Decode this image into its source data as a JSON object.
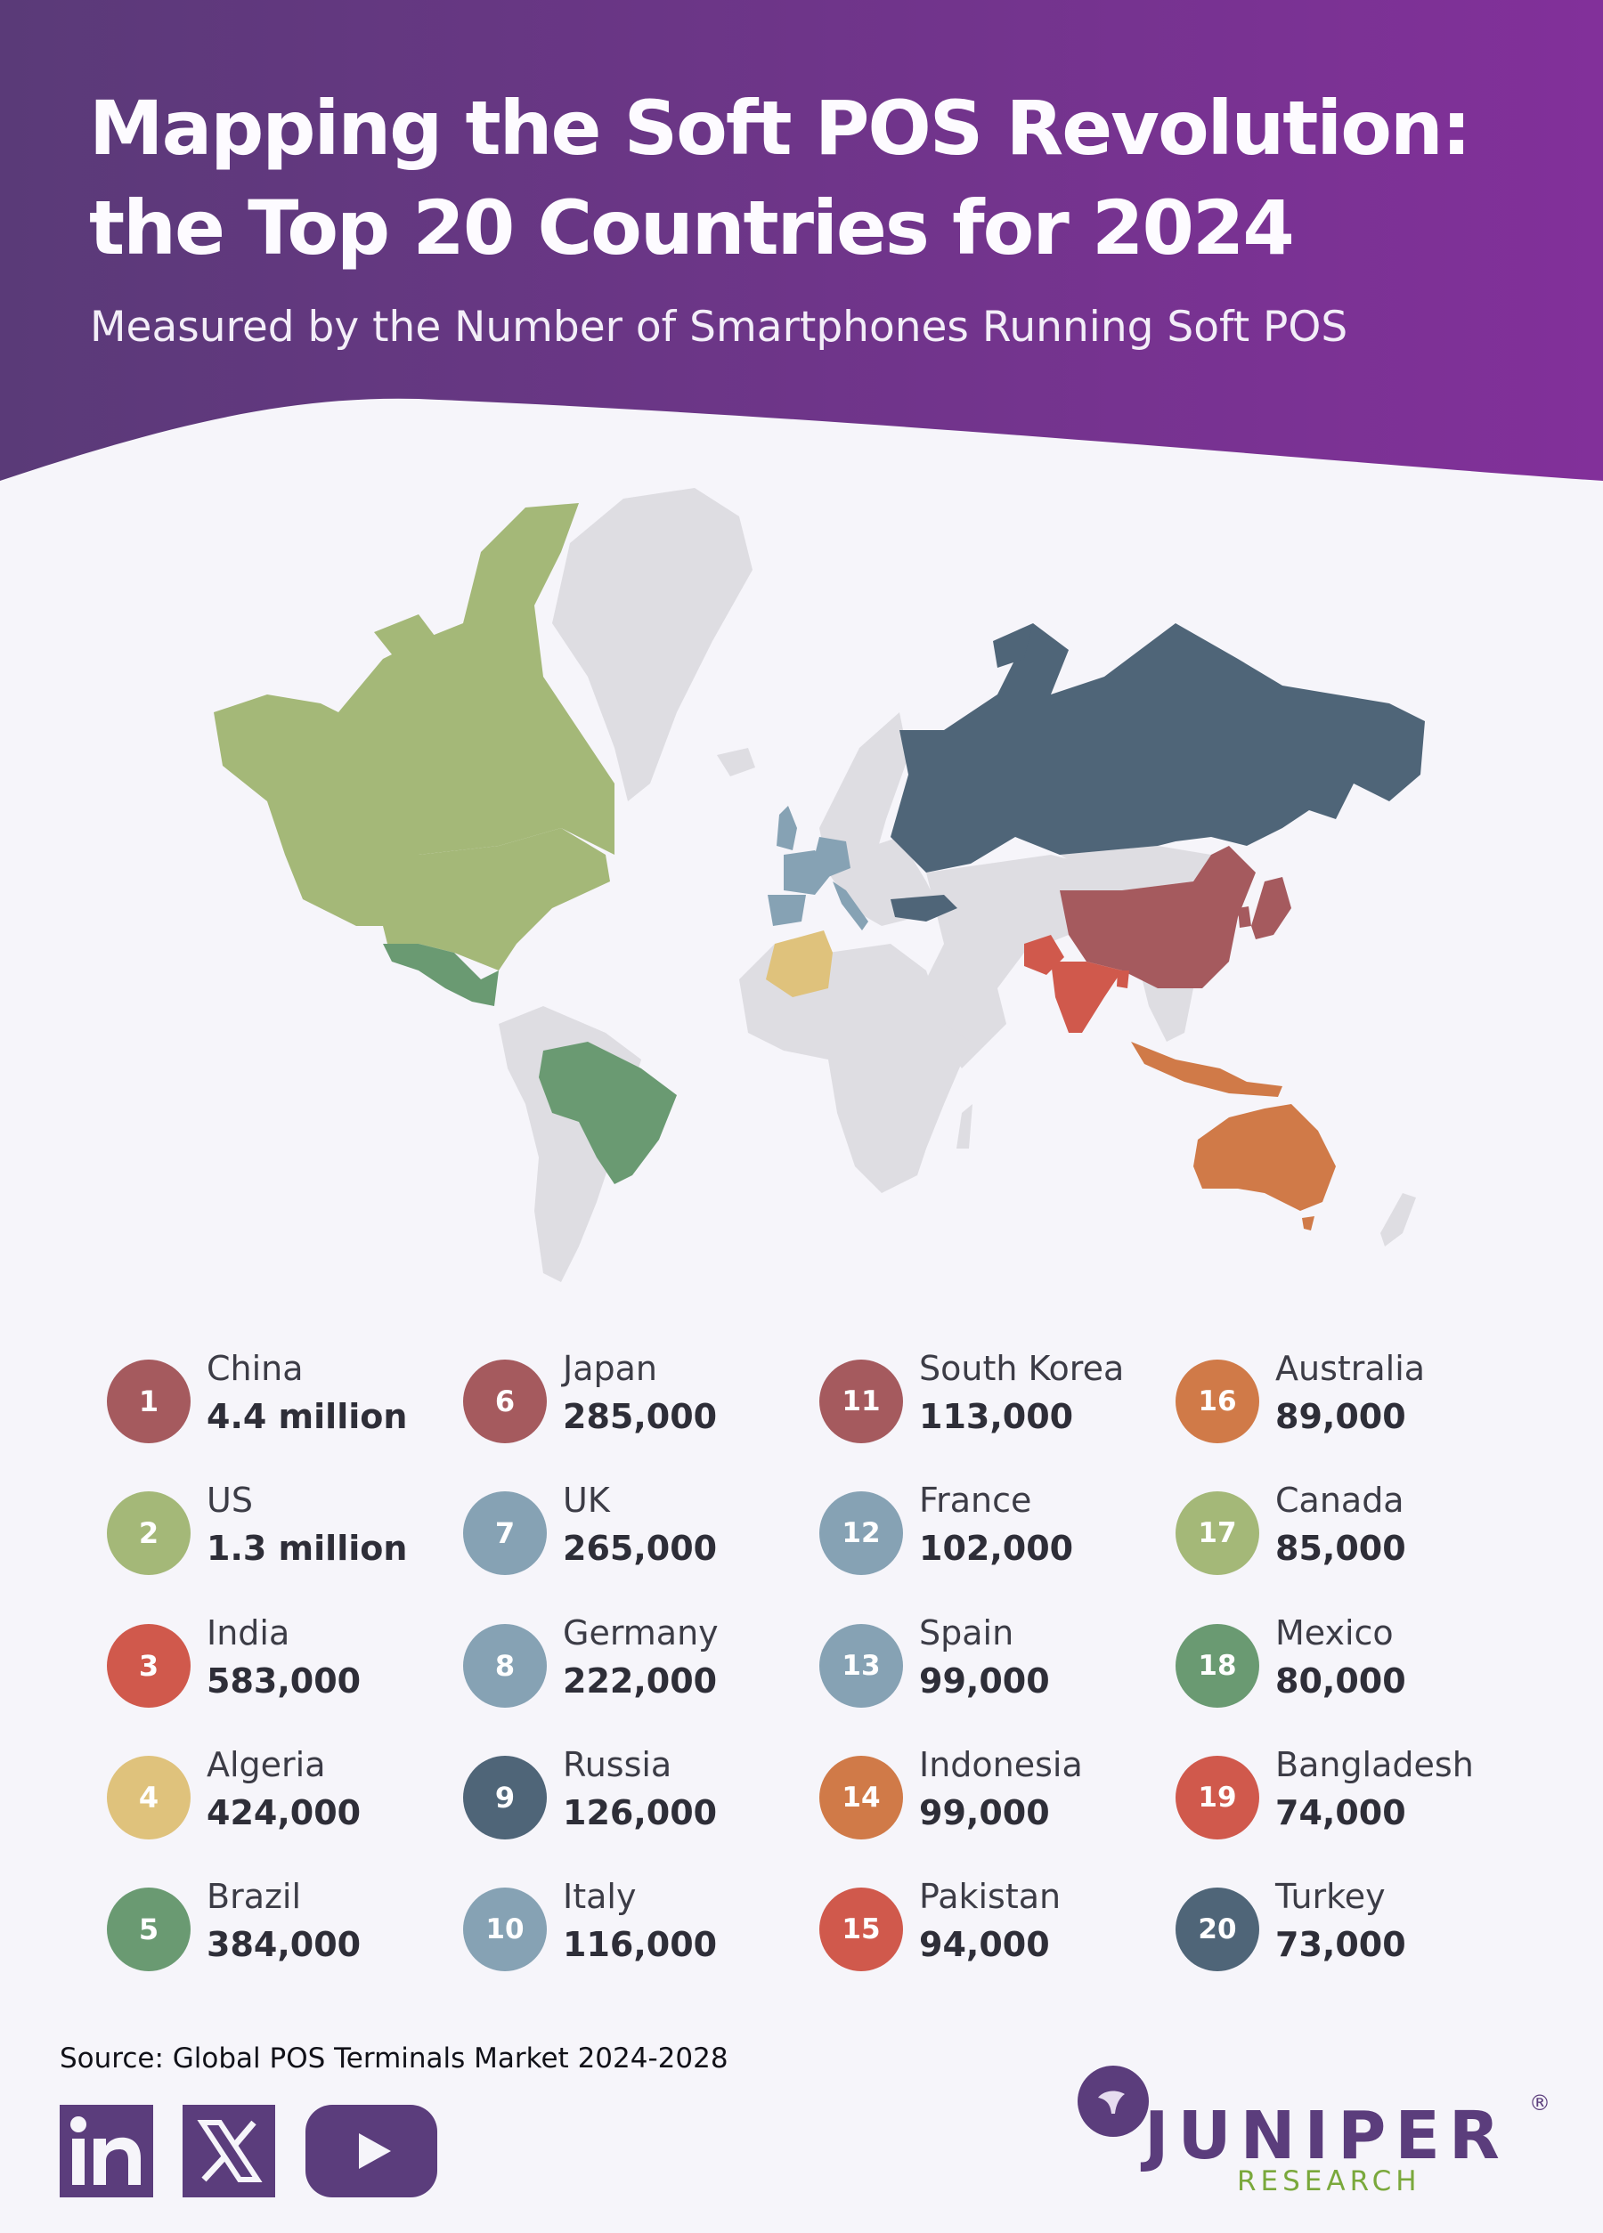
{
  "header": {
    "title_line1": "Mapping the Soft POS Revolution:",
    "title_line2": "the Top 20 Countries for 2024",
    "subtitle": "Measured by the Number of Smartphones Running Soft POS",
    "gradient": [
      "#5a3a78",
      "#82309a"
    ]
  },
  "colors": {
    "china": "#a55a5e",
    "us": "#a4b878",
    "india": "#d0594c",
    "algeria": "#dfc27c",
    "brazil": "#6a9a72",
    "japan": "#a55a5e",
    "uk": "#86a2b4",
    "germany": "#86a2b4",
    "russia": "#4f6578",
    "italy": "#86a2b4",
    "south_korea": "#a55a5e",
    "france": "#86a2b4",
    "spain": "#86a2b4",
    "indonesia": "#d07a48",
    "pakistan": "#d0594c",
    "australia": "#d07a48",
    "canada": "#a4b878",
    "mexico": "#6a9a72",
    "bangladesh": "#d0594c",
    "turkey": "#4f6578",
    "other_land": "#dedde2",
    "background": "#f6f5fa"
  },
  "legend": [
    {
      "rank": "1",
      "country": "China",
      "value": "4.4 million",
      "color": "#a55a5e"
    },
    {
      "rank": "2",
      "country": "US",
      "value": "1.3 million",
      "color": "#a4b878"
    },
    {
      "rank": "3",
      "country": "India",
      "value": "583,000",
      "color": "#d0594c"
    },
    {
      "rank": "4",
      "country": "Algeria",
      "value": "424,000",
      "color": "#dfc27c"
    },
    {
      "rank": "5",
      "country": "Brazil",
      "value": "384,000",
      "color": "#6a9a72"
    },
    {
      "rank": "6",
      "country": "Japan",
      "value": "285,000",
      "color": "#a55a5e"
    },
    {
      "rank": "7",
      "country": "UK",
      "value": "265,000",
      "color": "#86a2b4"
    },
    {
      "rank": "8",
      "country": "Germany",
      "value": "222,000",
      "color": "#86a2b4"
    },
    {
      "rank": "9",
      "country": "Russia",
      "value": "126,000",
      "color": "#4f6578"
    },
    {
      "rank": "10",
      "country": "Italy",
      "value": "116,000",
      "color": "#86a2b4"
    },
    {
      "rank": "11",
      "country": "South Korea",
      "value": "113,000",
      "color": "#a55a5e"
    },
    {
      "rank": "12",
      "country": "France",
      "value": "102,000",
      "color": "#86a2b4"
    },
    {
      "rank": "13",
      "country": "Spain",
      "value": "99,000",
      "color": "#86a2b4"
    },
    {
      "rank": "14",
      "country": "Indonesia",
      "value": "99,000",
      "color": "#d07a48"
    },
    {
      "rank": "15",
      "country": "Pakistan",
      "value": "94,000",
      "color": "#d0594c"
    },
    {
      "rank": "16",
      "country": "Australia",
      "value": "89,000",
      "color": "#d07a48"
    },
    {
      "rank": "17",
      "country": "Canada",
      "value": "85,000",
      "color": "#a4b878"
    },
    {
      "rank": "18",
      "country": "Mexico",
      "value": "80,000",
      "color": "#6a9a72"
    },
    {
      "rank": "19",
      "country": "Bangladesh",
      "value": "74,000",
      "color": "#d0594c"
    },
    {
      "rank": "20",
      "country": "Turkey",
      "value": "73,000",
      "color": "#4f6578"
    }
  ],
  "footer": {
    "source": "Source: Global POS Terminals Market 2024-2028",
    "social_icons": [
      "linkedin-icon",
      "x-icon",
      "youtube-icon"
    ],
    "social_color": "#5b3d7c",
    "brand": {
      "name": "JUNIPER",
      "registered": "®",
      "tagline": "RESEARCH",
      "name_color": "#5b3d7c",
      "tagline_color": "#7aa83c"
    }
  }
}
